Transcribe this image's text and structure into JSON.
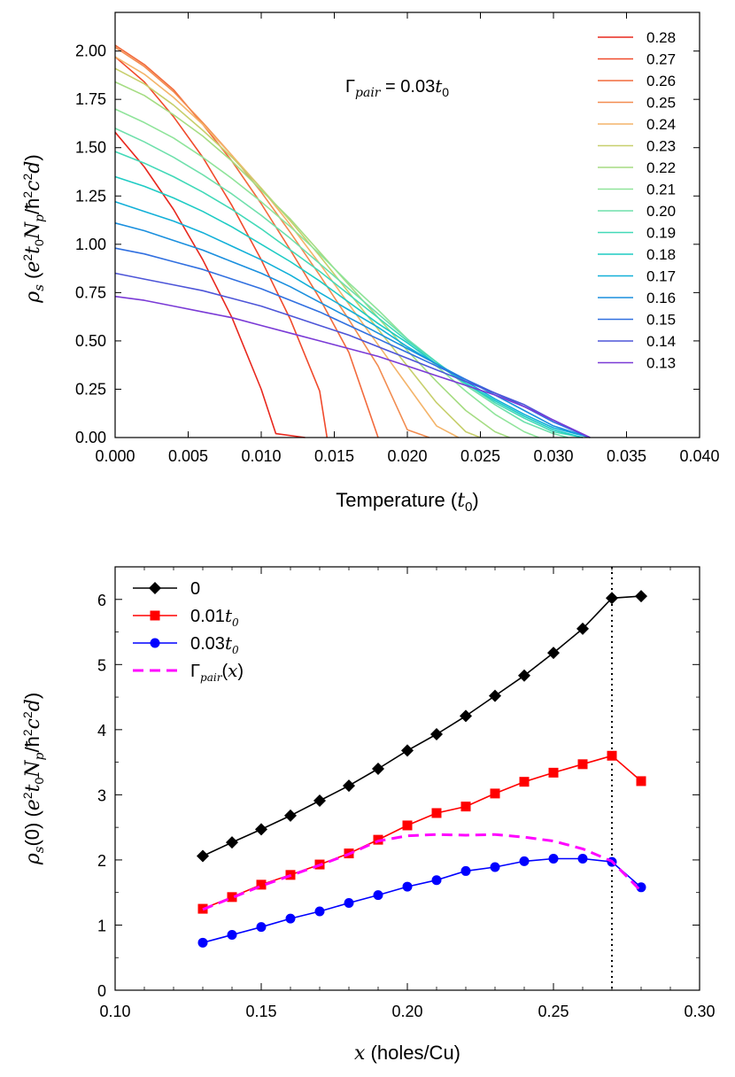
{
  "chart_data": [
    {
      "type": "line",
      "title": "",
      "annotation": "Γ_pair = 0.03t_0",
      "xlabel": "Temperature (t_0)",
      "ylabel": "ρ_s  (e^2 t_0 N_p / ħ^2 c^2 d)",
      "xlim": [
        0,
        0.04
      ],
      "ylim": [
        0,
        2.2
      ],
      "xticks": [
        0,
        0.005,
        0.01,
        0.015,
        0.02,
        0.025,
        0.03,
        0.035,
        0.04
      ],
      "xtick_labels": [
        "0.000",
        "0.005",
        "0.010",
        "0.015",
        "0.020",
        "0.025",
        "0.030",
        "0.035",
        "0.040"
      ],
      "yticks": [
        0,
        0.25,
        0.5,
        0.75,
        1.0,
        1.25,
        1.5,
        1.75,
        2.0
      ],
      "ytick_labels": [
        "0.00",
        "0.25",
        "0.50",
        "0.75",
        "1.00",
        "1.25",
        "1.50",
        "1.75",
        "2.00"
      ],
      "legend_position": "top-right",
      "series": [
        {
          "name": "0.28",
          "color": "#e8281e",
          "x": [
            0,
            0.002,
            0.004,
            0.006,
            0.008,
            0.01,
            0.011,
            0.013
          ],
          "y": [
            1.58,
            1.4,
            1.18,
            0.92,
            0.62,
            0.25,
            0.02,
            0.0
          ]
        },
        {
          "name": "0.27",
          "color": "#f04a2c",
          "x": [
            0,
            0.002,
            0.004,
            0.006,
            0.008,
            0.01,
            0.012,
            0.014,
            0.0145
          ],
          "y": [
            1.97,
            1.84,
            1.66,
            1.45,
            1.2,
            0.92,
            0.61,
            0.24,
            0.0
          ]
        },
        {
          "name": "0.26",
          "color": "#f26a3c",
          "x": [
            0,
            0.002,
            0.004,
            0.006,
            0.008,
            0.01,
            0.012,
            0.014,
            0.016,
            0.018
          ],
          "y": [
            2.03,
            1.93,
            1.8,
            1.62,
            1.43,
            1.21,
            0.97,
            0.72,
            0.44,
            0.0
          ]
        },
        {
          "name": "0.25",
          "color": "#f28c50",
          "x": [
            0,
            0.002,
            0.004,
            0.006,
            0.008,
            0.01,
            0.012,
            0.014,
            0.016,
            0.018,
            0.02,
            0.0215
          ],
          "y": [
            2.02,
            1.92,
            1.79,
            1.63,
            1.46,
            1.27,
            1.06,
            0.84,
            0.61,
            0.37,
            0.04,
            0.0
          ]
        },
        {
          "name": "0.24",
          "color": "#f4b46a",
          "x": [
            0,
            0.002,
            0.004,
            0.006,
            0.008,
            0.01,
            0.012,
            0.014,
            0.016,
            0.018,
            0.02,
            0.022,
            0.0235
          ],
          "y": [
            1.97,
            1.88,
            1.76,
            1.62,
            1.46,
            1.29,
            1.1,
            0.9,
            0.69,
            0.48,
            0.27,
            0.06,
            0.0
          ]
        },
        {
          "name": "0.23",
          "color": "#c7cf6c",
          "x": [
            0,
            0.002,
            0.004,
            0.006,
            0.008,
            0.01,
            0.012,
            0.014,
            0.016,
            0.018,
            0.02,
            0.022,
            0.024,
            0.025
          ],
          "y": [
            1.91,
            1.83,
            1.72,
            1.59,
            1.45,
            1.29,
            1.12,
            0.94,
            0.75,
            0.56,
            0.37,
            0.18,
            0.03,
            0.0
          ]
        },
        {
          "name": "0.22",
          "color": "#a5dc82",
          "x": [
            0,
            0.002,
            0.004,
            0.006,
            0.008,
            0.01,
            0.012,
            0.014,
            0.016,
            0.018,
            0.02,
            0.022,
            0.024,
            0.026,
            0.027
          ],
          "y": [
            1.84,
            1.77,
            1.67,
            1.56,
            1.43,
            1.28,
            1.13,
            0.96,
            0.79,
            0.62,
            0.45,
            0.29,
            0.14,
            0.03,
            0.0
          ]
        },
        {
          "name": "0.21",
          "color": "#8fe49a",
          "x": [
            0,
            0.002,
            0.004,
            0.006,
            0.008,
            0.01,
            0.012,
            0.014,
            0.016,
            0.018,
            0.02,
            0.022,
            0.024,
            0.026,
            0.028,
            0.029
          ],
          "y": [
            1.7,
            1.63,
            1.55,
            1.45,
            1.34,
            1.22,
            1.09,
            0.95,
            0.8,
            0.66,
            0.51,
            0.37,
            0.24,
            0.12,
            0.03,
            0.0
          ]
        },
        {
          "name": "0.20",
          "color": "#6fe0ac",
          "x": [
            0,
            0.002,
            0.004,
            0.006,
            0.008,
            0.01,
            0.012,
            0.014,
            0.016,
            0.018,
            0.02,
            0.022,
            0.024,
            0.026,
            0.028,
            0.03,
            0.031
          ],
          "y": [
            1.6,
            1.53,
            1.45,
            1.36,
            1.26,
            1.15,
            1.03,
            0.9,
            0.77,
            0.64,
            0.51,
            0.39,
            0.27,
            0.17,
            0.08,
            0.02,
            0.0
          ]
        },
        {
          "name": "0.19",
          "color": "#42d9b8",
          "x": [
            0,
            0.002,
            0.004,
            0.006,
            0.008,
            0.01,
            0.012,
            0.014,
            0.016,
            0.018,
            0.02,
            0.022,
            0.024,
            0.026,
            0.028,
            0.03,
            0.032
          ],
          "y": [
            1.48,
            1.42,
            1.35,
            1.27,
            1.18,
            1.08,
            0.97,
            0.86,
            0.74,
            0.62,
            0.5,
            0.39,
            0.28,
            0.18,
            0.1,
            0.03,
            0.0
          ]
        },
        {
          "name": "0.18",
          "color": "#1fcbc4",
          "x": [
            0,
            0.002,
            0.004,
            0.006,
            0.008,
            0.01,
            0.012,
            0.014,
            0.016,
            0.018,
            0.02,
            0.022,
            0.024,
            0.026,
            0.028,
            0.03,
            0.032
          ],
          "y": [
            1.35,
            1.3,
            1.24,
            1.17,
            1.09,
            1.0,
            0.91,
            0.81,
            0.7,
            0.59,
            0.49,
            0.38,
            0.28,
            0.19,
            0.11,
            0.04,
            0.0
          ]
        },
        {
          "name": "0.17",
          "color": "#13b0d8",
          "x": [
            0,
            0.002,
            0.004,
            0.006,
            0.008,
            0.01,
            0.012,
            0.014,
            0.016,
            0.018,
            0.02,
            0.022,
            0.024,
            0.026,
            0.028,
            0.03,
            0.0325
          ],
          "y": [
            1.22,
            1.17,
            1.12,
            1.06,
            0.99,
            0.92,
            0.84,
            0.75,
            0.66,
            0.57,
            0.47,
            0.38,
            0.29,
            0.2,
            0.12,
            0.05,
            0.0
          ]
        },
        {
          "name": "0.16",
          "color": "#1a8fde",
          "x": [
            0,
            0.002,
            0.004,
            0.006,
            0.008,
            0.01,
            0.012,
            0.014,
            0.016,
            0.018,
            0.02,
            0.022,
            0.024,
            0.026,
            0.028,
            0.03,
            0.0325
          ],
          "y": [
            1.11,
            1.07,
            1.02,
            0.97,
            0.91,
            0.85,
            0.78,
            0.7,
            0.62,
            0.54,
            0.46,
            0.38,
            0.3,
            0.22,
            0.14,
            0.06,
            0.0
          ]
        },
        {
          "name": "0.15",
          "color": "#3170e0",
          "x": [
            0,
            0.002,
            0.004,
            0.006,
            0.008,
            0.01,
            0.012,
            0.014,
            0.016,
            0.018,
            0.02,
            0.022,
            0.024,
            0.026,
            0.028,
            0.03,
            0.0325
          ],
          "y": [
            0.98,
            0.95,
            0.91,
            0.87,
            0.82,
            0.77,
            0.71,
            0.65,
            0.58,
            0.51,
            0.44,
            0.37,
            0.3,
            0.23,
            0.16,
            0.08,
            0.0
          ]
        },
        {
          "name": "0.14",
          "color": "#4d55d8",
          "x": [
            0,
            0.002,
            0.004,
            0.006,
            0.008,
            0.01,
            0.012,
            0.014,
            0.016,
            0.018,
            0.02,
            0.022,
            0.024,
            0.026,
            0.028,
            0.03,
            0.0325
          ],
          "y": [
            0.85,
            0.82,
            0.79,
            0.76,
            0.72,
            0.68,
            0.63,
            0.58,
            0.53,
            0.47,
            0.41,
            0.35,
            0.29,
            0.23,
            0.17,
            0.09,
            0.0
          ]
        },
        {
          "name": "0.13",
          "color": "#7a3ad6",
          "x": [
            0,
            0.002,
            0.004,
            0.006,
            0.008,
            0.01,
            0.012,
            0.014,
            0.016,
            0.018,
            0.02,
            0.022,
            0.024,
            0.026,
            0.028,
            0.03,
            0.0325
          ],
          "y": [
            0.73,
            0.71,
            0.68,
            0.65,
            0.62,
            0.58,
            0.54,
            0.5,
            0.46,
            0.42,
            0.37,
            0.32,
            0.27,
            0.22,
            0.16,
            0.09,
            0.0
          ]
        }
      ]
    },
    {
      "type": "line",
      "title": "",
      "xlabel": "x (holes/Cu)",
      "ylabel": "ρ_s(0)  (e^2 t_0 N_p / ħ^2 c^2 d)",
      "xlim": [
        0.1,
        0.3
      ],
      "ylim": [
        0,
        6.5
      ],
      "xticks": [
        0.1,
        0.15,
        0.2,
        0.25,
        0.3
      ],
      "xtick_labels": [
        "0.10",
        "0.15",
        "0.20",
        "0.25",
        "0.30"
      ],
      "yticks": [
        0,
        1,
        2,
        3,
        4,
        5,
        6
      ],
      "ytick_labels": [
        "0",
        "1",
        "2",
        "3",
        "4",
        "5",
        "6"
      ],
      "vline_x": 0.27,
      "legend_position": "top-left",
      "series": [
        {
          "name": "0",
          "color": "#000000",
          "marker": "diamond",
          "dash": "solid",
          "x": [
            0.13,
            0.14,
            0.15,
            0.16,
            0.17,
            0.18,
            0.19,
            0.2,
            0.21,
            0.22,
            0.23,
            0.24,
            0.25,
            0.26,
            0.27,
            0.28
          ],
          "y": [
            2.06,
            2.27,
            2.47,
            2.68,
            2.91,
            3.14,
            3.4,
            3.68,
            3.93,
            4.21,
            4.52,
            4.83,
            5.18,
            5.55,
            6.02,
            6.05
          ]
        },
        {
          "name": "0.01t_0",
          "color": "#ff0000",
          "marker": "square",
          "dash": "solid",
          "x": [
            0.13,
            0.14,
            0.15,
            0.16,
            0.17,
            0.18,
            0.19,
            0.2,
            0.21,
            0.22,
            0.23,
            0.24,
            0.25,
            0.26,
            0.27,
            0.28
          ],
          "y": [
            1.25,
            1.43,
            1.62,
            1.77,
            1.93,
            2.1,
            2.31,
            2.53,
            2.72,
            2.82,
            3.02,
            3.2,
            3.34,
            3.47,
            3.6,
            3.21
          ]
        },
        {
          "name": "0.03t_0",
          "color": "#0000ff",
          "marker": "circle",
          "dash": "solid",
          "x": [
            0.13,
            0.14,
            0.15,
            0.16,
            0.17,
            0.18,
            0.19,
            0.2,
            0.21,
            0.22,
            0.23,
            0.24,
            0.25,
            0.26,
            0.27,
            0.28
          ],
          "y": [
            0.73,
            0.85,
            0.97,
            1.1,
            1.21,
            1.34,
            1.46,
            1.59,
            1.69,
            1.83,
            1.89,
            1.98,
            2.02,
            2.02,
            1.97,
            1.58
          ]
        },
        {
          "name": "Γ_pair(x)",
          "color": "#ff00ff",
          "marker": "none",
          "dash": "dashed",
          "x": [
            0.13,
            0.14,
            0.15,
            0.16,
            0.17,
            0.18,
            0.19,
            0.2,
            0.21,
            0.22,
            0.23,
            0.24,
            0.25,
            0.26,
            0.27,
            0.28
          ],
          "y": [
            1.24,
            1.42,
            1.6,
            1.76,
            1.92,
            2.09,
            2.29,
            2.37,
            2.39,
            2.38,
            2.39,
            2.35,
            2.29,
            2.17,
            1.98,
            1.52
          ]
        }
      ]
    }
  ]
}
